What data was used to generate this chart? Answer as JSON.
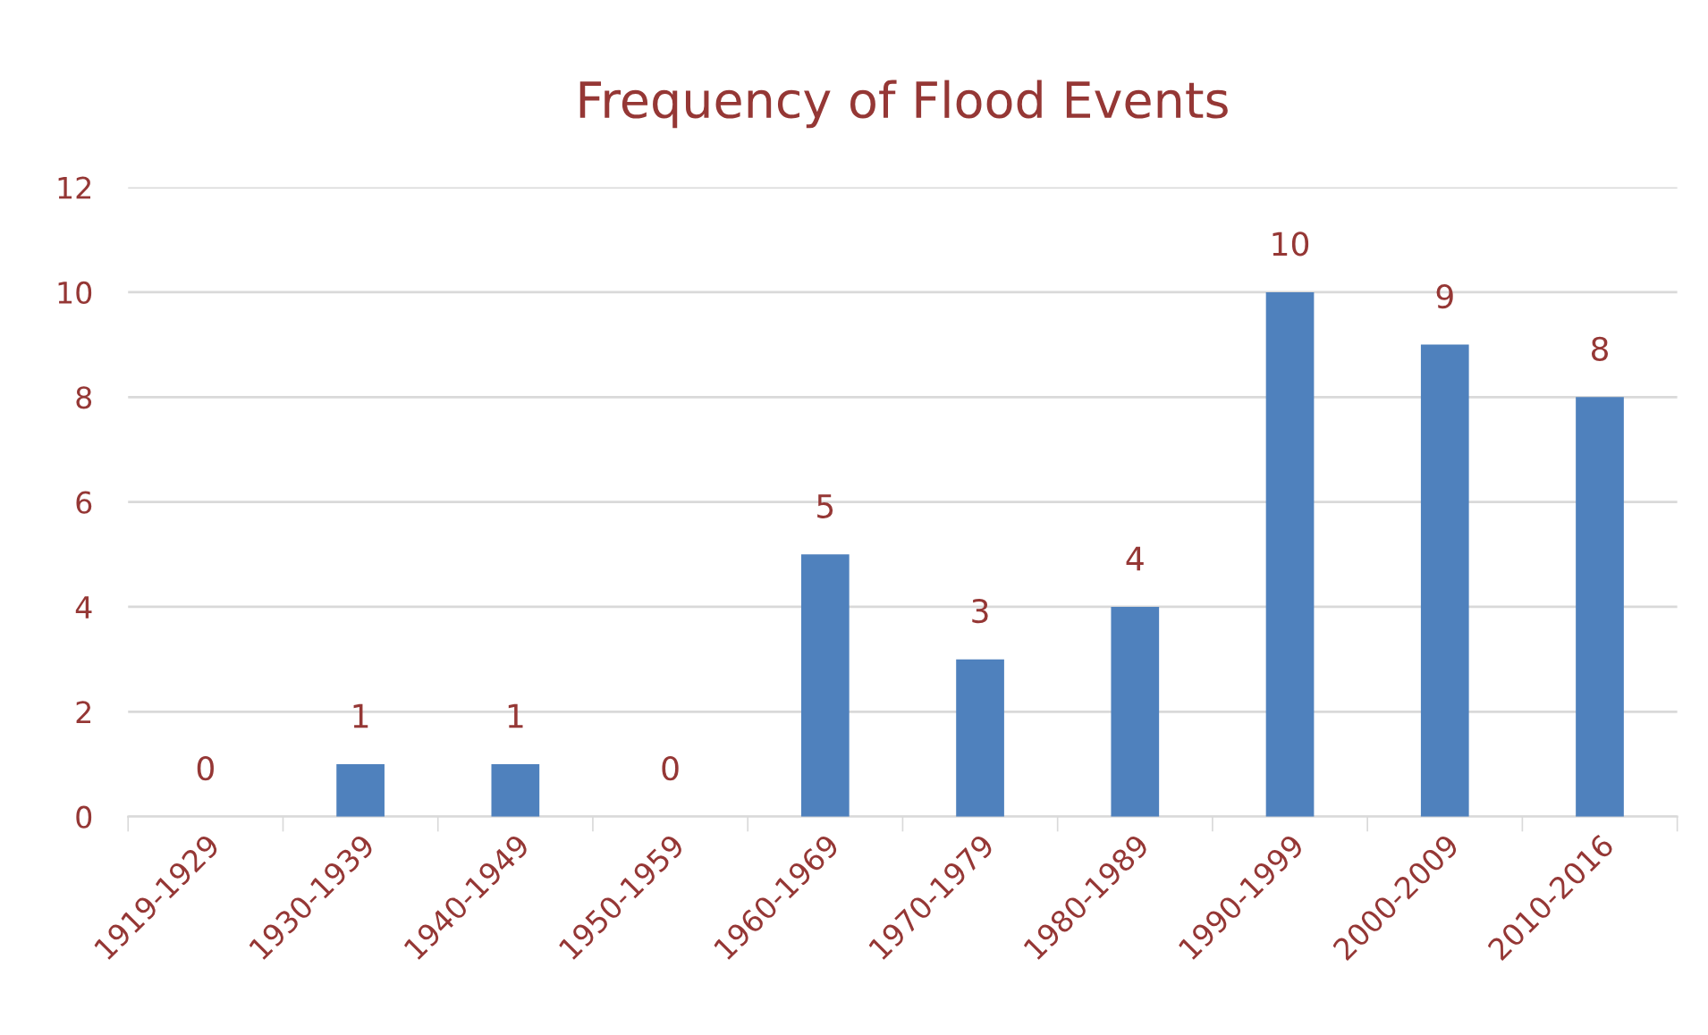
{
  "chart_data": {
    "type": "bar",
    "title": "Frequency of Flood Events",
    "categories": [
      "1919-1929",
      "1930-1939",
      "1940-1949",
      "1950-1959",
      "1960-1969",
      "1970-1979",
      "1980-1989",
      "1990-1999",
      "2000-2009",
      "2010-2016"
    ],
    "values": [
      0,
      1,
      1,
      0,
      5,
      3,
      4,
      10,
      9,
      8
    ],
    "color": "#4f81bd",
    "ylim": [
      0,
      12
    ],
    "yticks": [
      0,
      2,
      4,
      6,
      8,
      10,
      12
    ],
    "grid": "y",
    "data_labels": true,
    "legend": false
  }
}
